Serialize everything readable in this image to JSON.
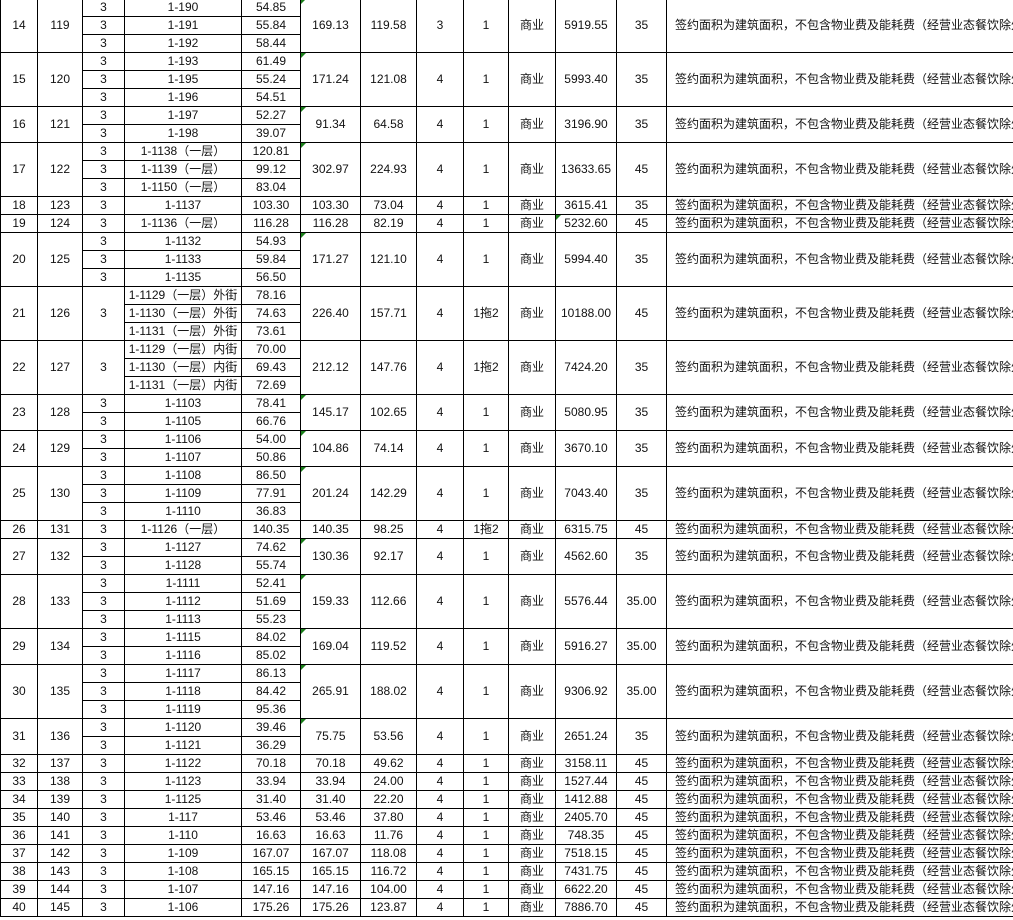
{
  "sheet": {
    "rows": [
      {
        "seq": "14",
        "id": "119",
        "units": [
          {
            "floor": "3",
            "unit": "1-190",
            "area": "54.85"
          },
          {
            "floor": "3",
            "unit": "1-191",
            "area": "55.84"
          },
          {
            "floor": "3",
            "unit": "1-192",
            "area": "58.44"
          }
        ],
        "total": "169.13",
        "usable": "119.58",
        "grade": "3",
        "term": "1",
        "use": "商业",
        "rent": "5919.55",
        "price": "35",
        "note": "签约面积为建筑面积，不包含物业费及能耗费（经营业态餐饮除外）"
      },
      {
        "seq": "15",
        "id": "120",
        "units": [
          {
            "floor": "3",
            "unit": "1-193",
            "area": "61.49"
          },
          {
            "floor": "3",
            "unit": "1-195",
            "area": "55.24"
          },
          {
            "floor": "3",
            "unit": "1-196",
            "area": "54.51"
          }
        ],
        "total": "171.24",
        "usable": "121.08",
        "grade": "4",
        "term": "1",
        "use": "商业",
        "rent": "5993.40",
        "price": "35",
        "note": "签约面积为建筑面积，不包含物业费及能耗费（经营业态餐饮除外）"
      },
      {
        "seq": "16",
        "id": "121",
        "units": [
          {
            "floor": "3",
            "unit": "1-197",
            "area": "52.27"
          },
          {
            "floor": "3",
            "unit": "1-198",
            "area": "39.07"
          }
        ],
        "total": "91.34",
        "usable": "64.58",
        "grade": "4",
        "term": "1",
        "use": "商业",
        "rent": "3196.90",
        "price": "35",
        "note": "签约面积为建筑面积，不包含物业费及能耗费（经营业态餐饮除外）"
      },
      {
        "seq": "17",
        "id": "122",
        "units": [
          {
            "floor": "3",
            "unit": "1-1138（一层）",
            "area": "120.81"
          },
          {
            "floor": "3",
            "unit": "1-1139（一层）",
            "area": "99.12"
          },
          {
            "floor": "3",
            "unit": "1-1150（一层）",
            "area": "83.04"
          }
        ],
        "total": "302.97",
        "usable": "224.93",
        "grade": "4",
        "term": "1",
        "use": "商业",
        "rent": "13633.65",
        "price": "45",
        "note": "签约面积为建筑面积，不包含物业费及能耗费（经营业态餐饮除外）"
      },
      {
        "seq": "18",
        "id": "123",
        "units": [
          {
            "floor": "3",
            "unit": "1-1137",
            "area": "103.30"
          }
        ],
        "total": "103.30",
        "usable": "73.04",
        "grade": "4",
        "term": "1",
        "use": "商业",
        "rent": "3615.41",
        "price": "35",
        "note": "签约面积为建筑面积，不包含物业费及能耗费（经营业态餐饮除外）"
      },
      {
        "seq": "19",
        "id": "124",
        "units": [
          {
            "floor": "3",
            "unit": "1-1136（一层）",
            "area": "116.28"
          }
        ],
        "total": "116.28",
        "usable": "82.19",
        "grade": "4",
        "term": "1",
        "use": "商业",
        "rent": "5232.60",
        "price": "45",
        "note": "签约面积为建筑面积，不包含物业费及能耗费（经营业态餐饮除外）"
      },
      {
        "seq": "20",
        "id": "125",
        "units": [
          {
            "floor": "3",
            "unit": "1-1132",
            "area": "54.93"
          },
          {
            "floor": "3",
            "unit": "1-1133",
            "area": "59.84"
          },
          {
            "floor": "3",
            "unit": "1-1135",
            "area": "56.50"
          }
        ],
        "total": "171.27",
        "usable": "121.10",
        "grade": "4",
        "term": "1",
        "use": "商业",
        "rent": "5994.40",
        "price": "35",
        "note": "签约面积为建筑面积，不包含物业费及能耗费（经营业态餐饮除外）"
      },
      {
        "seq": "21",
        "id": "126",
        "floor": "3",
        "units": [
          {
            "unit": "1-1129（一层）外街",
            "area": "78.16"
          },
          {
            "unit": "1-1130（一层）外街",
            "area": "74.63"
          },
          {
            "unit": "1-1131（一层）外街",
            "area": "73.61"
          }
        ],
        "total": "226.40",
        "usable": "157.71",
        "grade": "4",
        "term": "1拖2",
        "use": "商业",
        "rent": "10188.00",
        "price": "45",
        "note": "签约面积为建筑面积，不包含物业费及能耗费（经营业态餐饮除外）"
      },
      {
        "seq": "22",
        "id": "127",
        "floor": "3",
        "units": [
          {
            "unit": "1-1129（一层）内街",
            "area": "70.00"
          },
          {
            "unit": "1-1130（一层）内街",
            "area": "69.43"
          },
          {
            "unit": "1-1131（一层）内街",
            "area": "72.69"
          }
        ],
        "total": "212.12",
        "usable": "147.76",
        "grade": "4",
        "term": "1拖2",
        "use": "商业",
        "rent": "7424.20",
        "price": "35",
        "note": "签约面积为建筑面积，不包含物业费及能耗费（经营业态餐饮除外）"
      },
      {
        "seq": "23",
        "id": "128",
        "units": [
          {
            "floor": "3",
            "unit": "1-1103",
            "area": "78.41"
          },
          {
            "floor": "3",
            "unit": "1-1105",
            "area": "66.76"
          }
        ],
        "total": "145.17",
        "usable": "102.65",
        "grade": "4",
        "term": "1",
        "use": "商业",
        "rent": "5080.95",
        "price": "35",
        "note": "签约面积为建筑面积，不包含物业费及能耗费（经营业态餐饮除外）"
      },
      {
        "seq": "24",
        "id": "129",
        "units": [
          {
            "floor": "3",
            "unit": "1-1106",
            "area": "54.00"
          },
          {
            "floor": "3",
            "unit": "1-1107",
            "area": "50.86"
          }
        ],
        "total": "104.86",
        "usable": "74.14",
        "grade": "4",
        "term": "1",
        "use": "商业",
        "rent": "3670.10",
        "price": "35",
        "note": "签约面积为建筑面积，不包含物业费及能耗费（经营业态餐饮除外）"
      },
      {
        "seq": "25",
        "id": "130",
        "units": [
          {
            "floor": "3",
            "unit": "1-1108",
            "area": "86.50"
          },
          {
            "floor": "3",
            "unit": "1-1109",
            "area": "77.91"
          },
          {
            "floor": "3",
            "unit": "1-1110",
            "area": "36.83"
          }
        ],
        "total": "201.24",
        "usable": "142.29",
        "grade": "4",
        "term": "1",
        "use": "商业",
        "rent": "7043.40",
        "price": "35",
        "note": "签约面积为建筑面积，不包含物业费及能耗费（经营业态餐饮除外）"
      },
      {
        "seq": "26",
        "id": "131",
        "units": [
          {
            "floor": "3",
            "unit": "1-1126（一层）",
            "area": "140.35"
          }
        ],
        "total": "140.35",
        "usable": "98.25",
        "grade": "4",
        "term": "1拖2",
        "use": "商业",
        "rent": "6315.75",
        "price": "45",
        "note": "签约面积为建筑面积，不包含物业费及能耗费（经营业态餐饮除外）"
      },
      {
        "seq": "27",
        "id": "132",
        "units": [
          {
            "floor": "3",
            "unit": "1-1127",
            "area": "74.62"
          },
          {
            "floor": "3",
            "unit": "1-1128",
            "area": "55.74"
          }
        ],
        "total": "130.36",
        "usable": "92.17",
        "grade": "4",
        "term": "1",
        "use": "商业",
        "rent": "4562.60",
        "price": "35",
        "note": "签约面积为建筑面积，不包含物业费及能耗费（经营业态餐饮除外）"
      },
      {
        "seq": "28",
        "id": "133",
        "units": [
          {
            "floor": "3",
            "unit": "1-1111",
            "area": "52.41"
          },
          {
            "floor": "3",
            "unit": "1-1112",
            "area": "51.69"
          },
          {
            "floor": "3",
            "unit": "1-1113",
            "area": "55.23"
          }
        ],
        "total": "159.33",
        "usable": "112.66",
        "grade": "4",
        "term": "1",
        "use": "商业",
        "rent": "5576.44",
        "price": "35.00",
        "note": "签约面积为建筑面积，不包含物业费及能耗费（经营业态餐饮除外）"
      },
      {
        "seq": "29",
        "id": "134",
        "units": [
          {
            "floor": "3",
            "unit": "1-1115",
            "area": "84.02"
          },
          {
            "floor": "3",
            "unit": "1-1116",
            "area": "85.02"
          }
        ],
        "total": "169.04",
        "usable": "119.52",
        "grade": "4",
        "term": "1",
        "use": "商业",
        "rent": "5916.27",
        "price": "35.00",
        "note": "签约面积为建筑面积，不包含物业费及能耗费（经营业态餐饮除外）"
      },
      {
        "seq": "30",
        "id": "135",
        "units": [
          {
            "floor": "3",
            "unit": "1-1117",
            "area": "86.13"
          },
          {
            "floor": "3",
            "unit": "1-1118",
            "area": "84.42"
          },
          {
            "floor": "3",
            "unit": "1-1119",
            "area": "95.36"
          }
        ],
        "total": "265.91",
        "usable": "188.02",
        "grade": "4",
        "term": "1",
        "use": "商业",
        "rent": "9306.92",
        "price": "35.00",
        "note": "签约面积为建筑面积，不包含物业费及能耗费（经营业态餐饮除外）"
      },
      {
        "seq": "31",
        "id": "136",
        "units": [
          {
            "floor": "3",
            "unit": "1-1120",
            "area": "39.46"
          },
          {
            "floor": "3",
            "unit": "1-1121",
            "area": "36.29"
          }
        ],
        "total": "75.75",
        "usable": "53.56",
        "grade": "4",
        "term": "1",
        "use": "商业",
        "rent": "2651.24",
        "price": "35",
        "note": "签约面积为建筑面积，不包含物业费及能耗费（经营业态餐饮除外）"
      },
      {
        "seq": "32",
        "id": "137",
        "units": [
          {
            "floor": "3",
            "unit": "1-1122",
            "area": "70.18"
          }
        ],
        "total": "70.18",
        "usable": "49.62",
        "grade": "4",
        "term": "1",
        "use": "商业",
        "rent": "3158.11",
        "price": "45",
        "note": "签约面积为建筑面积，不包含物业费及能耗费（经营业态餐饮除外）"
      },
      {
        "seq": "33",
        "id": "138",
        "units": [
          {
            "floor": "3",
            "unit": "1-1123",
            "area": "33.94"
          }
        ],
        "total": "33.94",
        "usable": "24.00",
        "grade": "4",
        "term": "1",
        "use": "商业",
        "rent": "1527.44",
        "price": "45",
        "note": "签约面积为建筑面积，不包含物业费及能耗费（经营业态餐饮除外）"
      },
      {
        "seq": "34",
        "id": "139",
        "units": [
          {
            "floor": "3",
            "unit": "1-1125",
            "area": "31.40"
          }
        ],
        "total": "31.40",
        "usable": "22.20",
        "grade": "4",
        "term": "1",
        "use": "商业",
        "rent": "1412.88",
        "price": "45",
        "note": "签约面积为建筑面积，不包含物业费及能耗费（经营业态餐饮除外）"
      },
      {
        "seq": "35",
        "id": "140",
        "units": [
          {
            "floor": "3",
            "unit": "1-117",
            "area": "53.46"
          }
        ],
        "total": "53.46",
        "usable": "37.80",
        "grade": "4",
        "term": "1",
        "use": "商业",
        "rent": "2405.70",
        "price": "45",
        "note": "签约面积为建筑面积，不包含物业费及能耗费（经营业态餐饮除外）"
      },
      {
        "seq": "36",
        "id": "141",
        "units": [
          {
            "floor": "3",
            "unit": "1-110",
            "area": "16.63"
          }
        ],
        "total": "16.63",
        "usable": "11.76",
        "grade": "4",
        "term": "1",
        "use": "商业",
        "rent": "748.35",
        "price": "45",
        "note": "签约面积为建筑面积，不包含物业费及能耗费（经营业态餐饮除外）"
      },
      {
        "seq": "37",
        "id": "142",
        "units": [
          {
            "floor": "3",
            "unit": "1-109",
            "area": "167.07"
          }
        ],
        "total": "167.07",
        "usable": "118.08",
        "grade": "4",
        "term": "1",
        "use": "商业",
        "rent": "7518.15",
        "price": "45",
        "note": "签约面积为建筑面积，不包含物业费及能耗费（经营业态餐饮除外）"
      },
      {
        "seq": "38",
        "id": "143",
        "units": [
          {
            "floor": "3",
            "unit": "1-108",
            "area": "165.15"
          }
        ],
        "total": "165.15",
        "usable": "116.72",
        "grade": "4",
        "term": "1",
        "use": "商业",
        "rent": "7431.75",
        "price": "45",
        "note": "签约面积为建筑面积，不包含物业费及能耗费（经营业态餐饮除外）"
      },
      {
        "seq": "39",
        "id": "144",
        "units": [
          {
            "floor": "3",
            "unit": "1-107",
            "area": "147.16"
          }
        ],
        "total": "147.16",
        "usable": "104.00",
        "grade": "4",
        "term": "1",
        "use": "商业",
        "rent": "6622.20",
        "price": "45",
        "note": "签约面积为建筑面积，不包含物业费及能耗费（经营业态餐饮除外）"
      },
      {
        "seq": "40",
        "id": "145",
        "units": [
          {
            "floor": "3",
            "unit": "1-106",
            "area": "175.26"
          }
        ],
        "total": "175.26",
        "usable": "123.87",
        "grade": "4",
        "term": "1",
        "use": "商业",
        "rent": "7886.70",
        "price": "45",
        "note": "签约面积为建筑面积，不包含物业费及能耗费（经营业态餐饮除外）"
      }
    ]
  }
}
